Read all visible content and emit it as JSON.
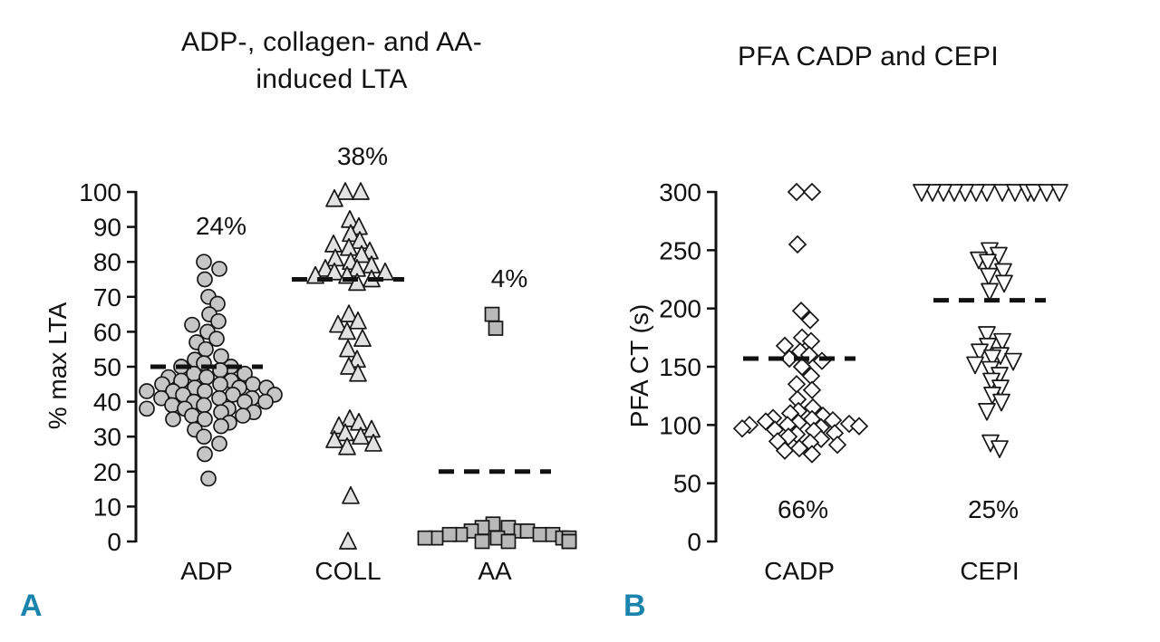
{
  "figure": {
    "background": "#ffffff",
    "text_color": "#111111",
    "accent_color": "#1b84ad",
    "marker_stroke": "#161616",
    "median_line_color": "#111111"
  },
  "panel_labels": [
    "A",
    "B"
  ],
  "chart_data": [
    {
      "type": "scatter",
      "title": "ADP-, collagen- and AA-induced LTA",
      "title_lines": [
        "ADP-, collagen- and AA-",
        "induced LTA"
      ],
      "xlabel": "",
      "ylabel": "% max LTA",
      "ylim": [
        0,
        100
      ],
      "yticks": [
        0,
        10,
        20,
        30,
        40,
        50,
        60,
        70,
        80,
        90,
        100
      ],
      "grid": false,
      "legend": false,
      "groups": [
        {
          "label": "ADP",
          "marker": "circle",
          "marker_fill": "#c6c6c6",
          "annotation": "24%",
          "annotation_position": "top",
          "median_line": 50,
          "values": [
            80,
            78,
            75,
            70,
            68,
            65,
            63,
            62,
            60,
            58,
            57,
            55,
            53,
            52,
            51,
            50,
            50,
            49,
            48,
            48,
            47,
            47,
            46,
            46,
            45,
            45,
            45,
            44,
            44,
            44,
            43,
            43,
            43,
            42,
            42,
            42,
            41,
            41,
            41,
            40,
            40,
            40,
            39,
            39,
            38,
            38,
            38,
            37,
            37,
            36,
            36,
            35,
            35,
            34,
            33,
            32,
            30,
            28,
            25,
            18
          ]
        },
        {
          "label": "COLL",
          "marker": "triangle-up",
          "marker_fill": "#e2e2e2",
          "annotation": "38%",
          "annotation_position": "top",
          "median_line": 75,
          "values": [
            100,
            100,
            98,
            92,
            90,
            88,
            86,
            85,
            84,
            83,
            82,
            81,
            80,
            79,
            78,
            78,
            77,
            77,
            76,
            76,
            75,
            74,
            65,
            63,
            62,
            60,
            58,
            55,
            52,
            50,
            48,
            35,
            34,
            33,
            32,
            31,
            30,
            29,
            28,
            27,
            13,
            0
          ]
        },
        {
          "label": "AA",
          "marker": "square",
          "marker_fill": "#b9b9b9",
          "annotation": "4%",
          "annotation_position": "top",
          "median_line": 20,
          "values": [
            65,
            61,
            5,
            4,
            4,
            3,
            3,
            3,
            2,
            2,
            2,
            2,
            1,
            1,
            1,
            1,
            1,
            0,
            0,
            0,
            0,
            0
          ]
        }
      ]
    },
    {
      "type": "scatter",
      "title": "PFA CADP and CEPI",
      "title_lines": [
        "PFA CADP and CEPI"
      ],
      "xlabel": "",
      "ylabel": "PFA CT (s)",
      "ylim": [
        0,
        300
      ],
      "yticks": [
        0,
        50,
        100,
        150,
        200,
        250,
        300
      ],
      "grid": false,
      "legend": false,
      "groups": [
        {
          "label": "CADP",
          "marker": "diamond",
          "marker_fill": "#ffffff",
          "annotation": "66%",
          "annotation_position": "bottom",
          "median_line": 157,
          "values": [
            300,
            300,
            255,
            198,
            190,
            175,
            172,
            168,
            163,
            160,
            157,
            155,
            150,
            142,
            135,
            130,
            122,
            115,
            112,
            110,
            108,
            106,
            105,
            104,
            103,
            102,
            101,
            100,
            100,
            99,
            98,
            97,
            96,
            95,
            93,
            92,
            90,
            88,
            86,
            85,
            83,
            80,
            78,
            75
          ]
        },
        {
          "label": "CEPI",
          "marker": "triangle-down",
          "marker_fill": "#ffffff",
          "annotation": "25%",
          "annotation_position": "bottom",
          "median_line": 207,
          "values": [
            300,
            300,
            300,
            300,
            300,
            300,
            300,
            300,
            300,
            300,
            300,
            300,
            300,
            250,
            246,
            242,
            240,
            232,
            228,
            222,
            215,
            178,
            172,
            168,
            163,
            160,
            158,
            155,
            152,
            148,
            143,
            138,
            132,
            126,
            120,
            112,
            85,
            80
          ]
        }
      ]
    }
  ]
}
